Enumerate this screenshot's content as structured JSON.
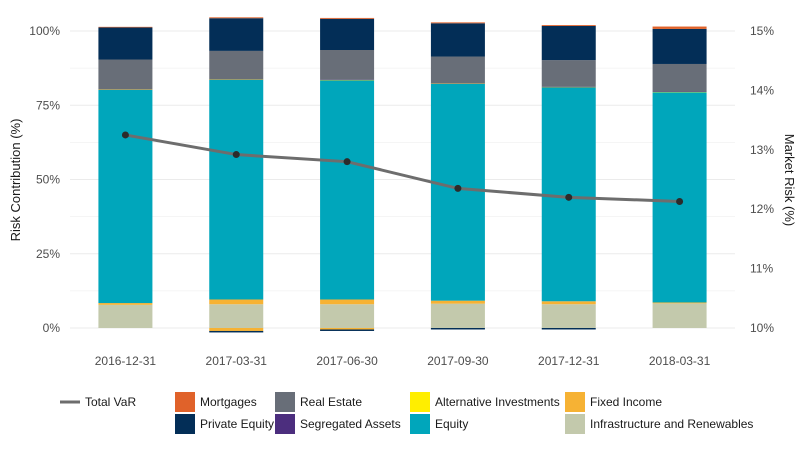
{
  "chart_data": {
    "type": "bar",
    "stacked": true,
    "secondary_type": "line",
    "categories": [
      "2016-12-31",
      "2017-03-31",
      "2017-06-30",
      "2017-09-30",
      "2017-12-31",
      "2018-03-31"
    ],
    "ylabel": "Risk Contribution (%)",
    "y2label": "Market Risk (%)",
    "ylim": [
      0,
      100
    ],
    "y2lim": [
      10,
      15
    ],
    "y_ticks": [
      "0%",
      "25%",
      "50%",
      "75%",
      "100%"
    ],
    "y2_ticks": [
      "10%",
      "11%",
      "12%",
      "13%",
      "14%",
      "15%"
    ],
    "grid": true,
    "legend_position": "bottom",
    "series": [
      {
        "name": "Mortgages",
        "color": "#e0622a",
        "values": [
          0.2,
          0.3,
          0.3,
          0.3,
          0.3,
          0.8
        ]
      },
      {
        "name": "Private Equity",
        "color": "#032e57",
        "values": [
          10.8,
          11.0,
          10.5,
          11.2,
          11.5,
          11.8
        ]
      },
      {
        "name": "Real Estate",
        "color": "#686e78",
        "values": [
          10.0,
          9.5,
          10.0,
          9.0,
          9.0,
          9.3
        ]
      },
      {
        "name": "Segregated Assets",
        "color": "#4c2e7e",
        "values": [
          0.1,
          0.1,
          0.1,
          0.1,
          0.1,
          0.1
        ]
      },
      {
        "name": "Alternative Investments",
        "color": "#ffee00",
        "values": [
          0.1,
          0.1,
          0.1,
          0.1,
          0.1,
          0.1
        ]
      },
      {
        "name": "Equity",
        "color": "#00a6bb",
        "values": [
          71.8,
          74.0,
          73.8,
          73.0,
          72.0,
          70.8
        ]
      },
      {
        "name": "Fixed Income",
        "color": "#f6b234",
        "values": [
          0.6,
          1.6,
          1.6,
          1.0,
          1.0,
          0.3
        ]
      },
      {
        "name": "Infrastructure and Renewables",
        "color": "#c3c9ac",
        "values": [
          7.8,
          8.0,
          8.0,
          8.2,
          8.0,
          8.3
        ]
      }
    ],
    "negative_values": {
      "Fixed Income": [
        0,
        -1.0,
        -0.5,
        0,
        0,
        0
      ],
      "Private Equity": [
        0,
        -0.5,
        -0.5,
        -0.5,
        -0.5,
        0
      ]
    },
    "line_series": {
      "name": "Total VaR",
      "color": "#6d6d6d",
      "axis": "right",
      "values": [
        13.25,
        12.92,
        12.8,
        12.35,
        12.2,
        12.13
      ]
    },
    "legend_order": [
      "Total VaR",
      "Mortgages",
      "Real Estate",
      "Alternative Investments",
      "Fixed Income",
      "Private Equity",
      "Segregated Assets",
      "Equity",
      "Infrastructure and Renewables"
    ]
  }
}
